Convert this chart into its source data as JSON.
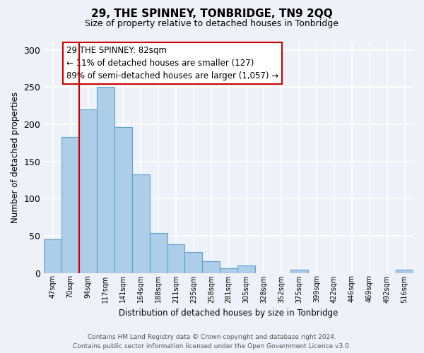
{
  "title": "29, THE SPINNEY, TONBRIDGE, TN9 2QQ",
  "subtitle": "Size of property relative to detached houses in Tonbridge",
  "xlabel": "Distribution of detached houses by size in Tonbridge",
  "ylabel": "Number of detached properties",
  "categories": [
    "47sqm",
    "70sqm",
    "94sqm",
    "117sqm",
    "141sqm",
    "164sqm",
    "188sqm",
    "211sqm",
    "235sqm",
    "258sqm",
    "281sqm",
    "305sqm",
    "328sqm",
    "352sqm",
    "375sqm",
    "399sqm",
    "422sqm",
    "446sqm",
    "469sqm",
    "492sqm",
    "516sqm"
  ],
  "values": [
    45,
    183,
    220,
    250,
    196,
    132,
    54,
    38,
    28,
    16,
    6,
    10,
    0,
    0,
    4,
    0,
    0,
    0,
    0,
    0,
    4
  ],
  "bar_color": "#aecde8",
  "bar_edge_color": "#5ba3d0",
  "ref_line_color": "#cc0000",
  "ref_line_x": 1.5,
  "ylim": [
    0,
    310
  ],
  "yticks": [
    0,
    50,
    100,
    150,
    200,
    250,
    300
  ],
  "annotation_title": "29 THE SPINNEY: 82sqm",
  "annotation_line1": "← 11% of detached houses are smaller (127)",
  "annotation_line2": "89% of semi-detached houses are larger (1,057) →",
  "annotation_box_color": "#ffffff",
  "annotation_box_edge_color": "#cc0000",
  "footer_line1": "Contains HM Land Registry data © Crown copyright and database right 2024.",
  "footer_line2": "Contains public sector information licensed under the Open Government Licence v3.0.",
  "background_color": "#eef2f8"
}
